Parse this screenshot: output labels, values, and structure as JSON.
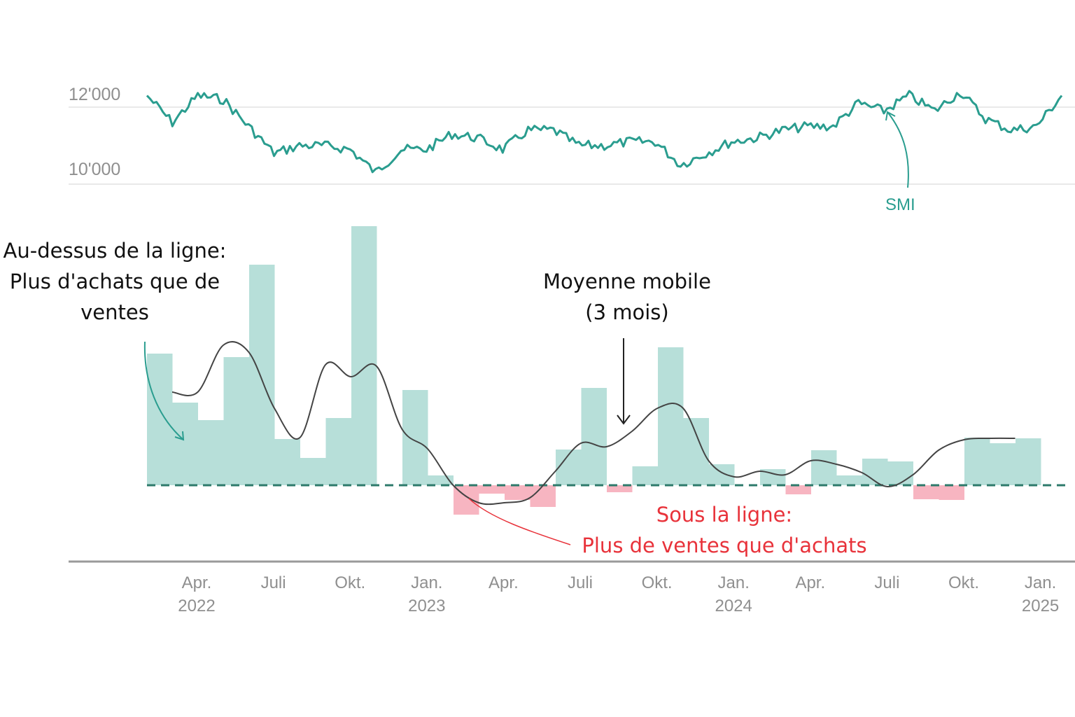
{
  "chart_data": [
    {
      "type": "line",
      "series": [
        {
          "name": "SMI",
          "x": [
            "2022-01",
            "2022-02",
            "2022-03",
            "2022-04",
            "2022-05",
            "2022-06",
            "2022-07",
            "2022-08",
            "2022-09",
            "2022-10",
            "2022-11",
            "2022-12",
            "2023-01",
            "2023-02",
            "2023-03",
            "2023-04",
            "2023-05",
            "2023-06",
            "2023-07",
            "2023-08",
            "2023-09",
            "2023-10",
            "2023-11",
            "2023-12",
            "2024-01",
            "2024-02",
            "2024-03",
            "2024-04",
            "2024-05",
            "2024-06",
            "2024-07",
            "2024-08",
            "2024-09",
            "2024-10",
            "2024-11",
            "2024-12",
            "2025-01"
          ],
          "values": [
            12300,
            11600,
            12300,
            12200,
            11500,
            10800,
            11000,
            11000,
            10900,
            10300,
            10900,
            10900,
            11300,
            11200,
            10900,
            11400,
            11400,
            11000,
            11000,
            11100,
            11100,
            10500,
            10800,
            11100,
            11200,
            11400,
            11500,
            11500,
            12100,
            11900,
            12300,
            11900,
            12400,
            11700,
            11400,
            11500,
            12300
          ]
        }
      ],
      "yticks": [
        "12'000",
        "10'000"
      ],
      "ylim": [
        10000,
        12500
      ],
      "grid": true,
      "color": "#2a9d8f"
    },
    {
      "type": "bar",
      "categories": [
        "2022-01",
        "2022-02",
        "2022-03",
        "2022-04",
        "2022-05",
        "2022-06",
        "2022-07",
        "2022-08",
        "2022-09",
        "2022-10",
        "2022-11",
        "2022-12",
        "2023-01",
        "2023-02",
        "2023-03",
        "2023-04",
        "2023-05",
        "2023-06",
        "2023-07",
        "2023-08",
        "2023-09",
        "2023-10",
        "2023-11",
        "2023-12",
        "2024-01",
        "2024-02",
        "2024-03",
        "2024-04",
        "2024-05",
        "2024-06",
        "2024-07",
        "2024-08",
        "2024-09",
        "2024-10",
        "2024-11",
        "2024-12"
      ],
      "values": [
        188,
        118,
        93,
        183,
        315,
        66,
        39,
        96,
        370,
        0,
        136,
        14,
        -42,
        -12,
        -21,
        -31,
        51,
        139,
        -10,
        27,
        197,
        96,
        30,
        0,
        23,
        -13,
        50,
        14,
        38,
        34,
        -20,
        -21,
        68,
        60,
        67,
        0
      ],
      "moving_average": {
        "label_line1": "Moyenne mobile",
        "label_line2": "(3 mois)",
        "values": [
          133,
          133,
          200,
          190,
          110,
          68,
          172,
          155,
          170,
          80,
          52,
          0,
          -25,
          -25,
          -18,
          20,
          60,
          55,
          77,
          110,
          110,
          35,
          12,
          20,
          15,
          35,
          30,
          18,
          -2,
          15,
          50,
          65,
          67,
          67
        ]
      },
      "xticks": [
        {
          "month": "Apr.",
          "year": "2022"
        },
        {
          "month": "Juli",
          "year": ""
        },
        {
          "month": "Okt.",
          "year": ""
        },
        {
          "month": "Jan.",
          "year": "2023"
        },
        {
          "month": "Apr.",
          "year": ""
        },
        {
          "month": "Juli",
          "year": ""
        },
        {
          "month": "Okt.",
          "year": ""
        },
        {
          "month": "Jan.",
          "year": "2024"
        },
        {
          "month": "Apr.",
          "year": ""
        },
        {
          "month": "Juli",
          "year": ""
        },
        {
          "month": "Okt.",
          "year": ""
        },
        {
          "month": "Jan.",
          "year": "2025"
        }
      ],
      "positive_color": "#b7dfd9",
      "negative_color": "#f7b5c1",
      "zero_line_color": "#2d7a6b"
    }
  ],
  "annotations": {
    "smi_label": "SMI",
    "above": [
      "Au-dessus de la ligne:",
      "Plus d'achats que de",
      "ventes"
    ],
    "below": [
      "Sous la ligne:",
      "Plus de ventes que d'achats"
    ],
    "above_color": "#000000",
    "below_color": "#e8323a"
  }
}
